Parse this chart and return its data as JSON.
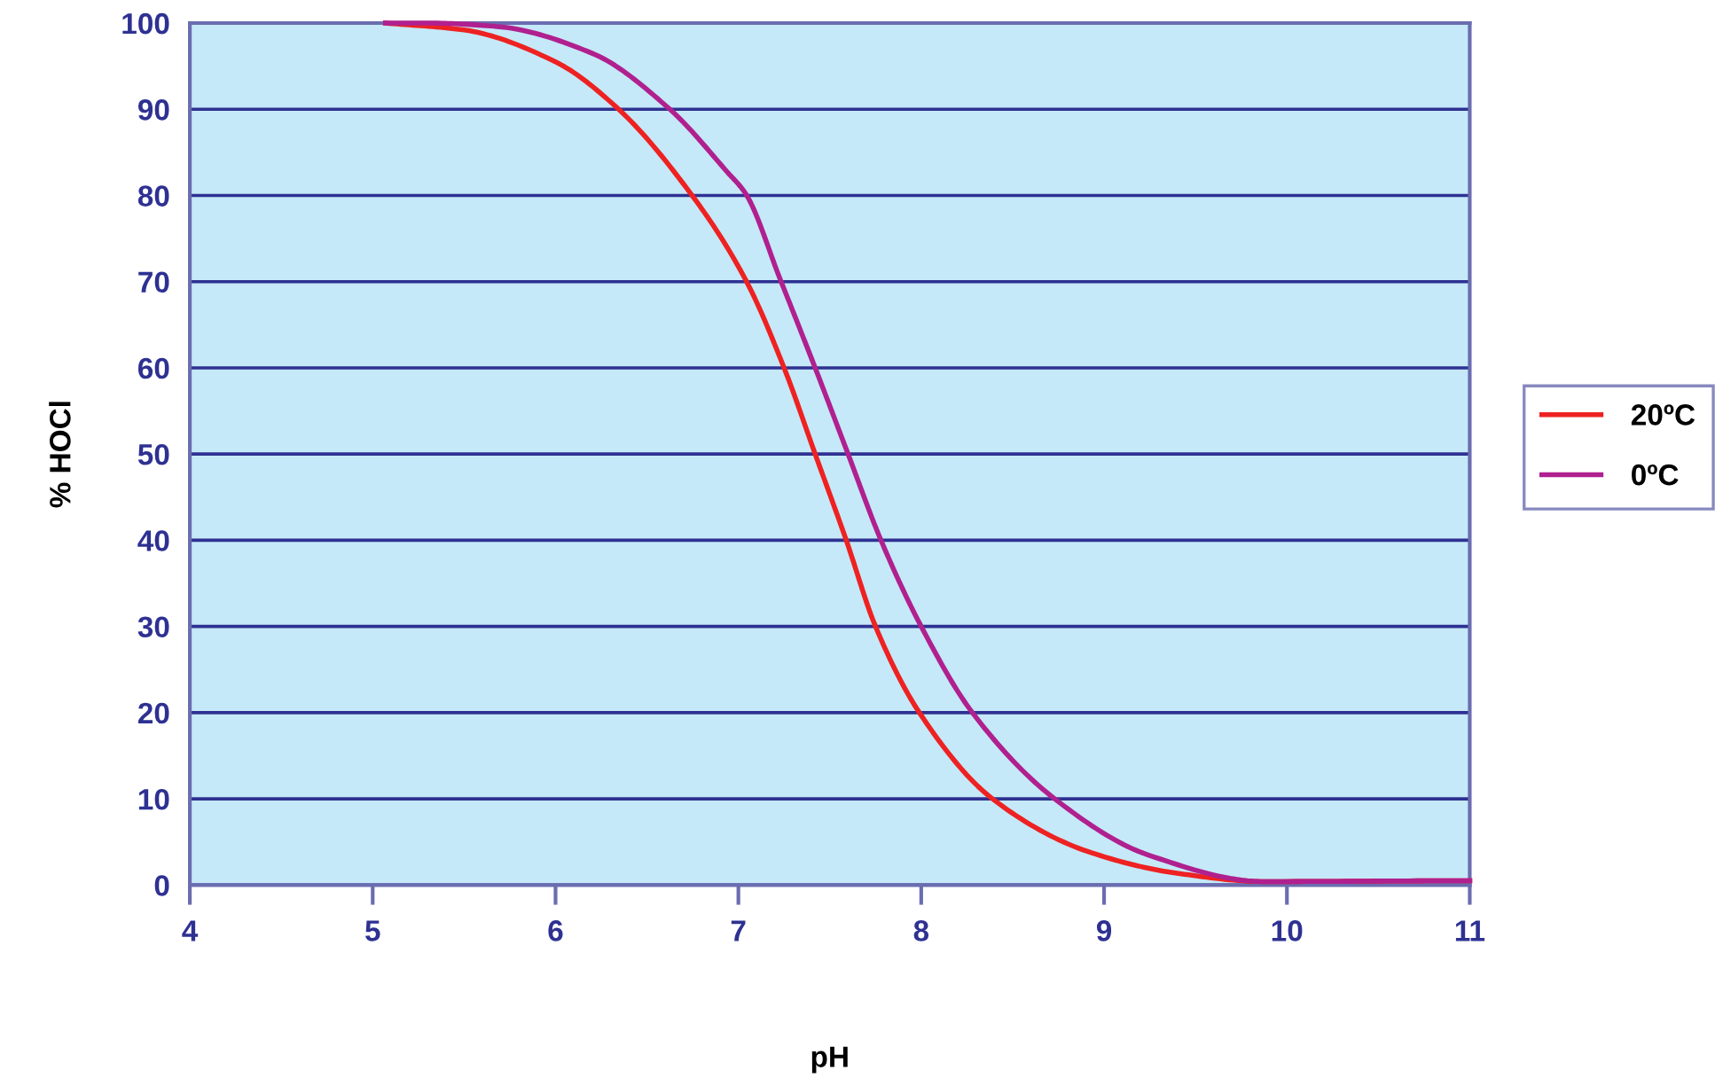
{
  "chart_data": {
    "type": "line",
    "xlabel": "pH",
    "ylabel": "% HOCl",
    "xlim": [
      4,
      11
    ],
    "xticks": [
      4,
      5,
      6,
      7,
      8,
      9,
      10,
      11
    ],
    "ylim": [
      0,
      100
    ],
    "yticks": [
      0,
      10,
      20,
      30,
      40,
      50,
      60,
      70,
      80,
      90,
      100
    ],
    "grid": "y",
    "legend": "right",
    "marker": "none",
    "line_style": "solid",
    "series": [
      {
        "name": "20ºC",
        "color": "#ee2222",
        "x": [
          5.07,
          5.5,
          6.0,
          6.33,
          6.74,
          7.04,
          7.25,
          7.42,
          7.59,
          7.75,
          7.99,
          8.39,
          8.91,
          9.39,
          9.88,
          11.0
        ],
        "values": [
          100,
          99.2,
          95.5,
          90.3,
          80.2,
          70.2,
          60,
          50,
          40,
          30,
          20,
          10,
          3.9,
          1.4,
          0.4,
          0.5
        ]
      },
      {
        "name": "0ºC",
        "color": "#b0208f",
        "x": [
          5.07,
          5.3,
          5.68,
          6.2,
          6.62,
          6.94,
          7.04,
          7.23,
          7.42,
          7.6,
          7.78,
          8.0,
          8.28,
          8.73,
          9.24,
          9.88,
          11.0
        ],
        "values": [
          100,
          100,
          99.6,
          96.5,
          90.1,
          82.7,
          80.2,
          70.2,
          60,
          50,
          40,
          30,
          20,
          10,
          3.5,
          0.4,
          0.5
        ]
      }
    ]
  }
}
